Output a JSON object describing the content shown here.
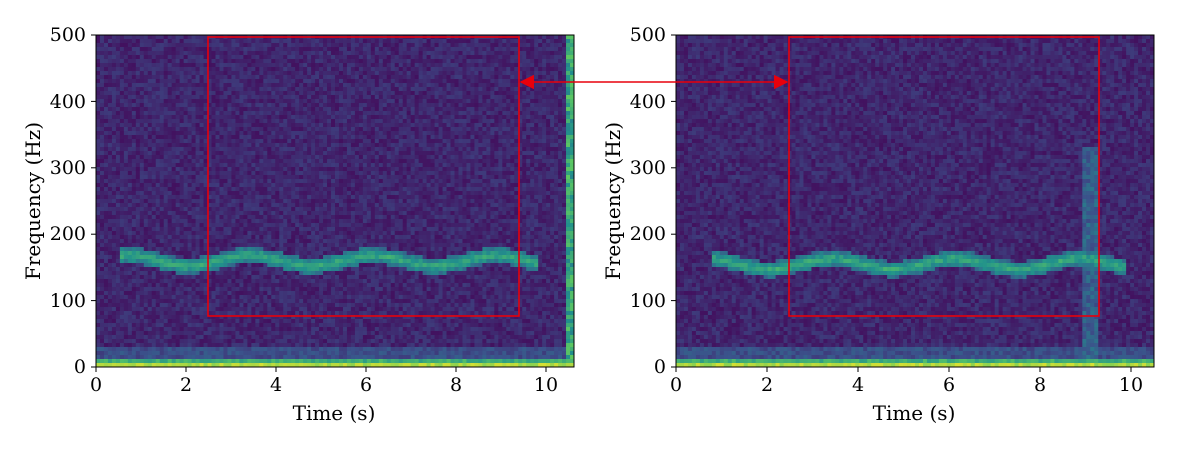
{
  "chart_data": [
    {
      "type": "heatmap",
      "xlabel": "Time (s)",
      "ylabel": "Frequency (Hz)",
      "xlim": [
        0,
        10.6
      ],
      "ylim": [
        0,
        500
      ],
      "xticks": [
        "0",
        "2",
        "4",
        "6",
        "8",
        "10"
      ],
      "yticks": [
        "0",
        "100",
        "200",
        "300",
        "400",
        "500"
      ],
      "colormap": "viridis",
      "highlight_box": {
        "x": [
          2.5,
          9.4
        ],
        "y": [
          75,
          495
        ],
        "color": "#e8000b"
      },
      "ridge": {
        "start_time": 0.5,
        "end_time": 9.8,
        "frequency": 160
      }
    },
    {
      "type": "heatmap",
      "xlabel": "Time (s)",
      "ylabel": "Frequency (Hz)",
      "xlim": [
        0,
        10.5
      ],
      "ylim": [
        0,
        500
      ],
      "xticks": [
        "0",
        "2",
        "4",
        "6",
        "8",
        "10"
      ],
      "yticks": [
        "0",
        "100",
        "200",
        "300",
        "400",
        "500"
      ],
      "colormap": "viridis",
      "highlight_box": {
        "x": [
          2.5,
          9.3
        ],
        "y": [
          75,
          495
        ],
        "color": "#e8000b"
      },
      "ridge": {
        "start_time": 0.8,
        "end_time": 9.9,
        "frequency": 155
      }
    }
  ],
  "annotation": {
    "type": "double-arrow",
    "color": "#e8000b"
  }
}
